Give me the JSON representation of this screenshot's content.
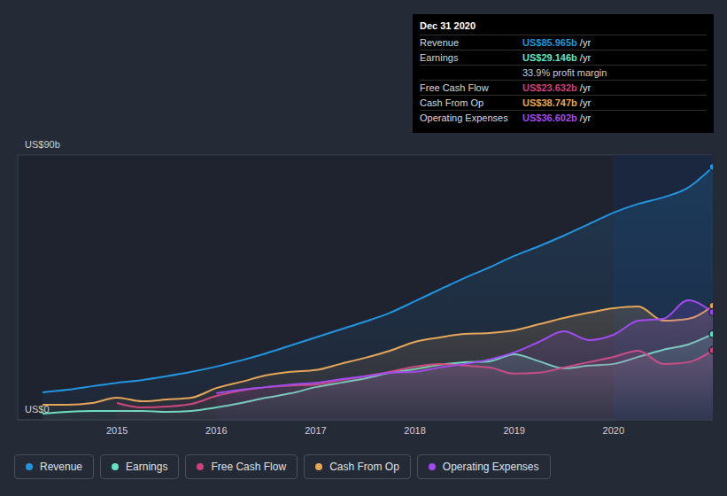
{
  "chart_data": {
    "type": "area",
    "x": [
      2014.25,
      2014.5,
      2014.75,
      2015,
      2015.25,
      2015.5,
      2015.75,
      2016,
      2016.25,
      2016.5,
      2016.75,
      2017,
      2017.25,
      2017.5,
      2017.75,
      2018,
      2018.25,
      2018.5,
      2018.75,
      2019,
      2019.25,
      2019.5,
      2019.75,
      2020,
      2020.25,
      2020.5,
      2020.75,
      2021
    ],
    "xlim": [
      2014,
      2021
    ],
    "xticks": [
      2015,
      2016,
      2017,
      2018,
      2019,
      2020
    ],
    "ylim": [
      0,
      90
    ],
    "yticks": [
      {
        "value": 0,
        "label": "US$0"
      },
      {
        "value": 90,
        "label": "US$90b"
      }
    ],
    "grid": true,
    "legend": "bottom-left",
    "series": [
      {
        "name": "Revenue",
        "color": "#2394df",
        "values": [
          9.3,
          10.2,
          11.4,
          12.6,
          13.5,
          14.8,
          16.3,
          18.1,
          20.2,
          22.6,
          25.3,
          28.0,
          30.7,
          33.4,
          36.4,
          40.3,
          44.3,
          48.2,
          51.8,
          55.7,
          59.0,
          62.6,
          66.5,
          70.4,
          73.4,
          75.6,
          78.9,
          85.965
        ]
      },
      {
        "name": "Earnings",
        "color": "#67e0c6",
        "values": [
          2.1,
          2.7,
          3.0,
          3.0,
          3.0,
          2.7,
          3.0,
          4.2,
          5.7,
          7.5,
          9.0,
          11.1,
          12.6,
          14.1,
          16.0,
          17.2,
          18.7,
          19.6,
          19.9,
          22.3,
          19.9,
          17.5,
          18.4,
          19.0,
          21.4,
          23.8,
          25.6,
          29.146
        ]
      },
      {
        "name": "Free Cash Flow",
        "color": "#c9437f",
        "values": [
          null,
          null,
          null,
          5.7,
          4.2,
          4.5,
          5.4,
          8.1,
          9.9,
          11.1,
          11.7,
          12.0,
          13.5,
          14.8,
          16.3,
          18.1,
          19.0,
          18.4,
          17.8,
          15.7,
          16.0,
          17.8,
          19.6,
          21.4,
          23.5,
          19.0,
          19.6,
          23.632
        ]
      },
      {
        "name": "Cash From Op",
        "color": "#e5a65a",
        "values": [
          5.1,
          5.1,
          5.7,
          7.5,
          6.3,
          6.9,
          7.5,
          10.8,
          12.9,
          15.1,
          16.3,
          16.9,
          19.0,
          21.1,
          23.5,
          26.5,
          28.0,
          29.2,
          29.5,
          30.4,
          32.5,
          34.6,
          36.4,
          37.9,
          38.5,
          33.7,
          34.3,
          38.747
        ]
      },
      {
        "name": "Operating Expenses",
        "color": "#a14bef",
        "values": [
          null,
          null,
          null,
          null,
          null,
          null,
          null,
          9.0,
          10.2,
          11.1,
          12.0,
          12.6,
          13.8,
          14.8,
          16.0,
          16.3,
          17.8,
          19.0,
          20.5,
          22.9,
          26.5,
          30.1,
          27.1,
          28.9,
          33.7,
          34.3,
          40.6,
          36.602
        ]
      }
    ],
    "annotation": {
      "title": "Dec 31 2020",
      "rows": [
        {
          "label": "Revenue",
          "value": "US$85.965b",
          "unit": "/yr"
        },
        {
          "label": "Earnings",
          "value": "US$29.146b",
          "unit": "/yr"
        },
        {
          "value": "33.9% profit margin"
        },
        {
          "label": "Free Cash Flow",
          "value": "US$23.632b",
          "unit": "/yr"
        },
        {
          "label": "Cash From Op",
          "value": "US$38.747b",
          "unit": "/yr"
        },
        {
          "label": "Operating Expenses",
          "value": "US$36.602b",
          "unit": "/yr"
        }
      ]
    }
  }
}
